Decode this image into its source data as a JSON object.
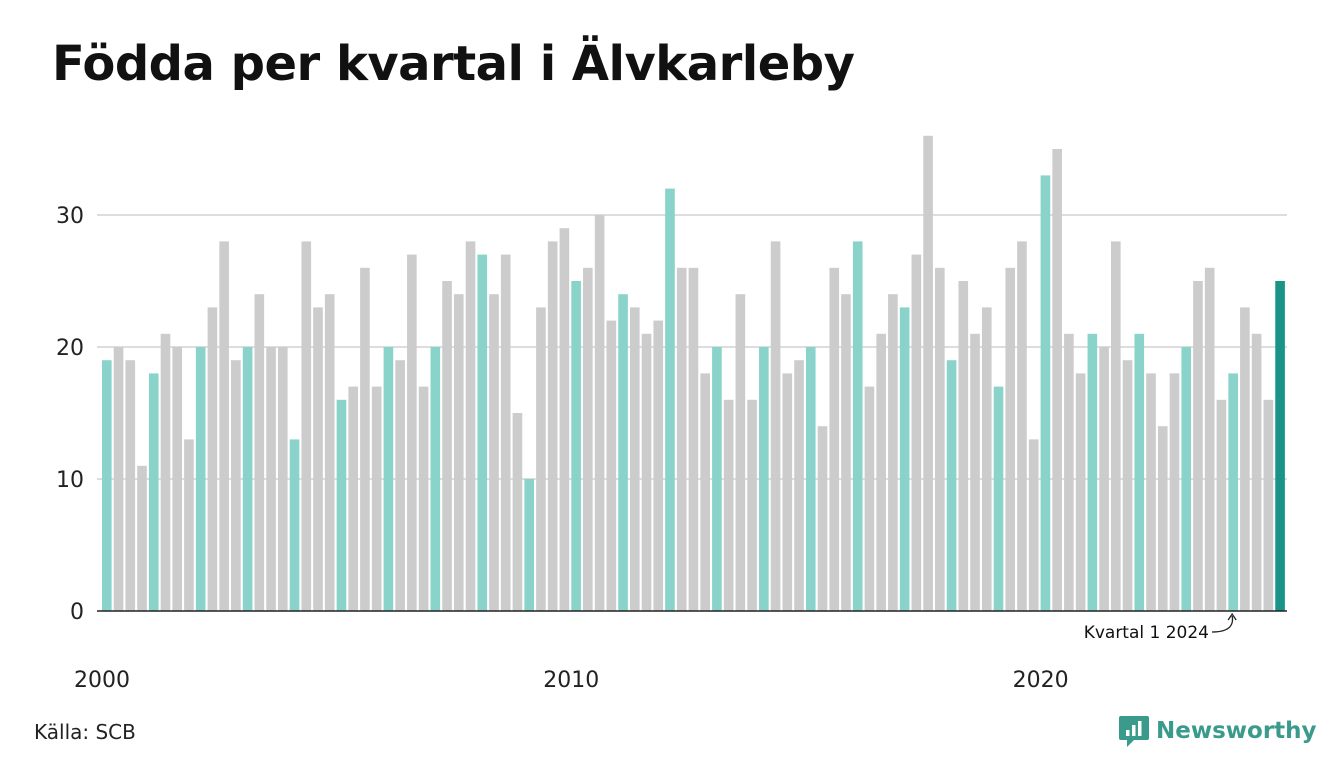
{
  "title": "Födda per kvartal i Älvkarleby",
  "source": "Källa: SCB",
  "brand": "Newsworthy",
  "colors": {
    "q1": "#8ad3cb",
    "other": "#cccccc",
    "highlight": "#1a9486",
    "grid": "#dddddd",
    "axis": "#222222",
    "brand": "#3a9a8c"
  },
  "chart_data": {
    "type": "bar",
    "title": "Födda per kvartal i Älvkarleby",
    "first_year": 2000,
    "quarters_per_year": 4,
    "values": [
      19,
      20,
      19,
      11,
      18,
      21,
      20,
      13,
      20,
      23,
      28,
      19,
      20,
      24,
      20,
      20,
      13,
      28,
      23,
      24,
      16,
      17,
      26,
      17,
      20,
      19,
      27,
      17,
      20,
      25,
      24,
      28,
      27,
      24,
      27,
      15,
      10,
      23,
      28,
      29,
      25,
      26,
      30,
      22,
      24,
      23,
      21,
      22,
      32,
      26,
      26,
      18,
      20,
      16,
      24,
      16,
      20,
      28,
      18,
      19,
      20,
      14,
      26,
      24,
      28,
      17,
      21,
      24,
      23,
      27,
      36,
      26,
      19,
      25,
      21,
      23,
      17,
      26,
      28,
      13,
      33,
      35,
      21,
      18,
      21,
      20,
      28,
      19,
      21,
      18,
      14,
      18,
      20,
      25,
      26,
      16,
      18,
      23,
      21,
      16,
      25
    ],
    "yticks": [
      0,
      10,
      20,
      30
    ],
    "ylim": [
      0,
      36
    ],
    "xticks": [
      "2000",
      "2010",
      "2020"
    ],
    "grid": true,
    "legend": "none",
    "annotation": {
      "text": "Kvartal 1 2024",
      "index": 96
    }
  }
}
